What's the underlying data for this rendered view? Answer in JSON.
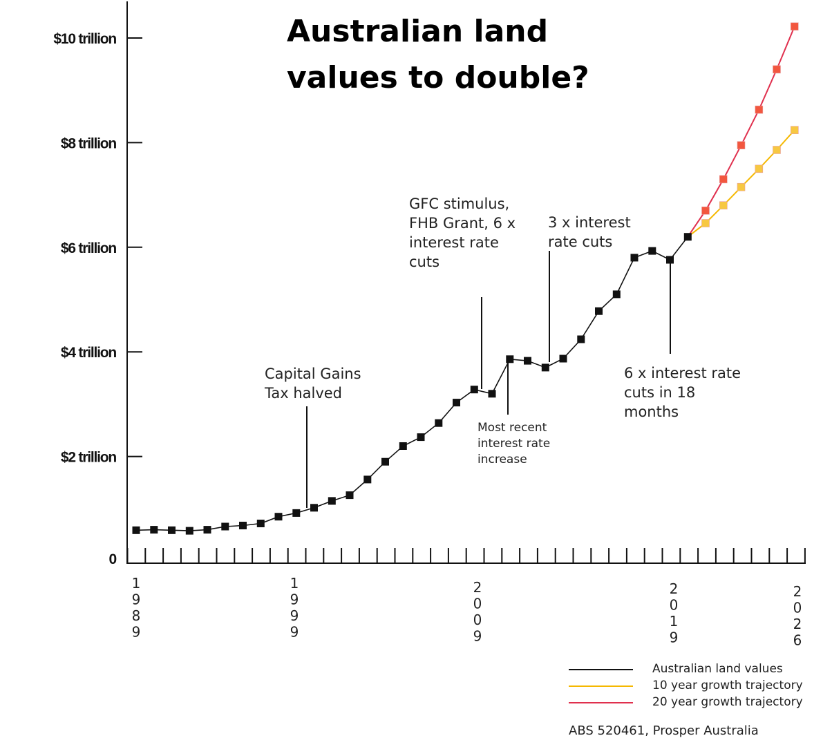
{
  "title_lines": [
    "Australian land",
    "values to double?"
  ],
  "source": "ABS 520461, Prosper Australia",
  "chart_data": {
    "type": "line",
    "title": "Australian land values to double?",
    "xlabel": "",
    "ylabel": "",
    "x_tick_labels": [
      "1989",
      "1999",
      "2009",
      "2019",
      "2026"
    ],
    "y_tick_labels": [
      "0",
      "$2 trillion",
      "$4 trillion",
      "$6 trillion",
      "$8 trillion",
      "$10 trillion"
    ],
    "ylim": [
      0,
      10
    ],
    "y_unit": "trillion AUD",
    "grid": false,
    "legend_position": "bottom-right",
    "series": [
      {
        "name": "Australian land values",
        "color": "#111111",
        "marker_color": "#111111",
        "x": [
          1989,
          1990,
          1991,
          1992,
          1993,
          1994,
          1995,
          1996,
          1997,
          1998,
          1999,
          2000,
          2001,
          2002,
          2003,
          2004,
          2005,
          2006,
          2007,
          2008,
          2009,
          2010,
          2011,
          2012,
          2013,
          2014,
          2015,
          2016,
          2017,
          2018,
          2019,
          2020
        ],
        "y": [
          0.59,
          0.6,
          0.59,
          0.58,
          0.6,
          0.66,
          0.68,
          0.72,
          0.85,
          0.92,
          1.02,
          1.15,
          1.26,
          1.56,
          1.9,
          2.2,
          2.37,
          2.64,
          3.03,
          3.28,
          3.2,
          3.86,
          3.83,
          3.7,
          3.87,
          4.24,
          4.78,
          5.1,
          5.8,
          5.93,
          5.76,
          6.2
        ]
      },
      {
        "name": "10 year growth trajectory",
        "color": "#f5b800",
        "marker_color": "#f7c842",
        "x": [
          2020,
          2021,
          2022,
          2023,
          2024,
          2025,
          2026
        ],
        "y": [
          6.2,
          6.46,
          6.8,
          7.15,
          7.5,
          7.86,
          8.24
        ]
      },
      {
        "name": "20 year growth trajectory",
        "color": "#e0304e",
        "marker_color": "#f2573f",
        "x": [
          2020,
          2021,
          2022,
          2023,
          2024,
          2025,
          2026
        ],
        "y": [
          6.2,
          6.7,
          7.3,
          7.95,
          8.63,
          9.4,
          10.22
        ]
      }
    ],
    "annotations": [
      {
        "text_lines": [
          "Capital Gains",
          "Tax halved"
        ],
        "x": 2000,
        "y": 1.15
      },
      {
        "text_lines": [
          "GFC stimulus,",
          "FHB Grant, 6 x",
          "interest rate",
          "cuts"
        ],
        "x": 2009,
        "y": 3.2
      },
      {
        "text_lines": [
          "Most recent",
          "interest rate",
          "increase"
        ],
        "x": 2010,
        "y": 3.86
      },
      {
        "text_lines": [
          "3 x interest",
          "rate cuts"
        ],
        "x": 2013,
        "y": 3.87
      },
      {
        "text_lines": [
          "6 x interest rate",
          "cuts in 18",
          "months"
        ],
        "x": 2019,
        "y": 5.76
      }
    ]
  }
}
